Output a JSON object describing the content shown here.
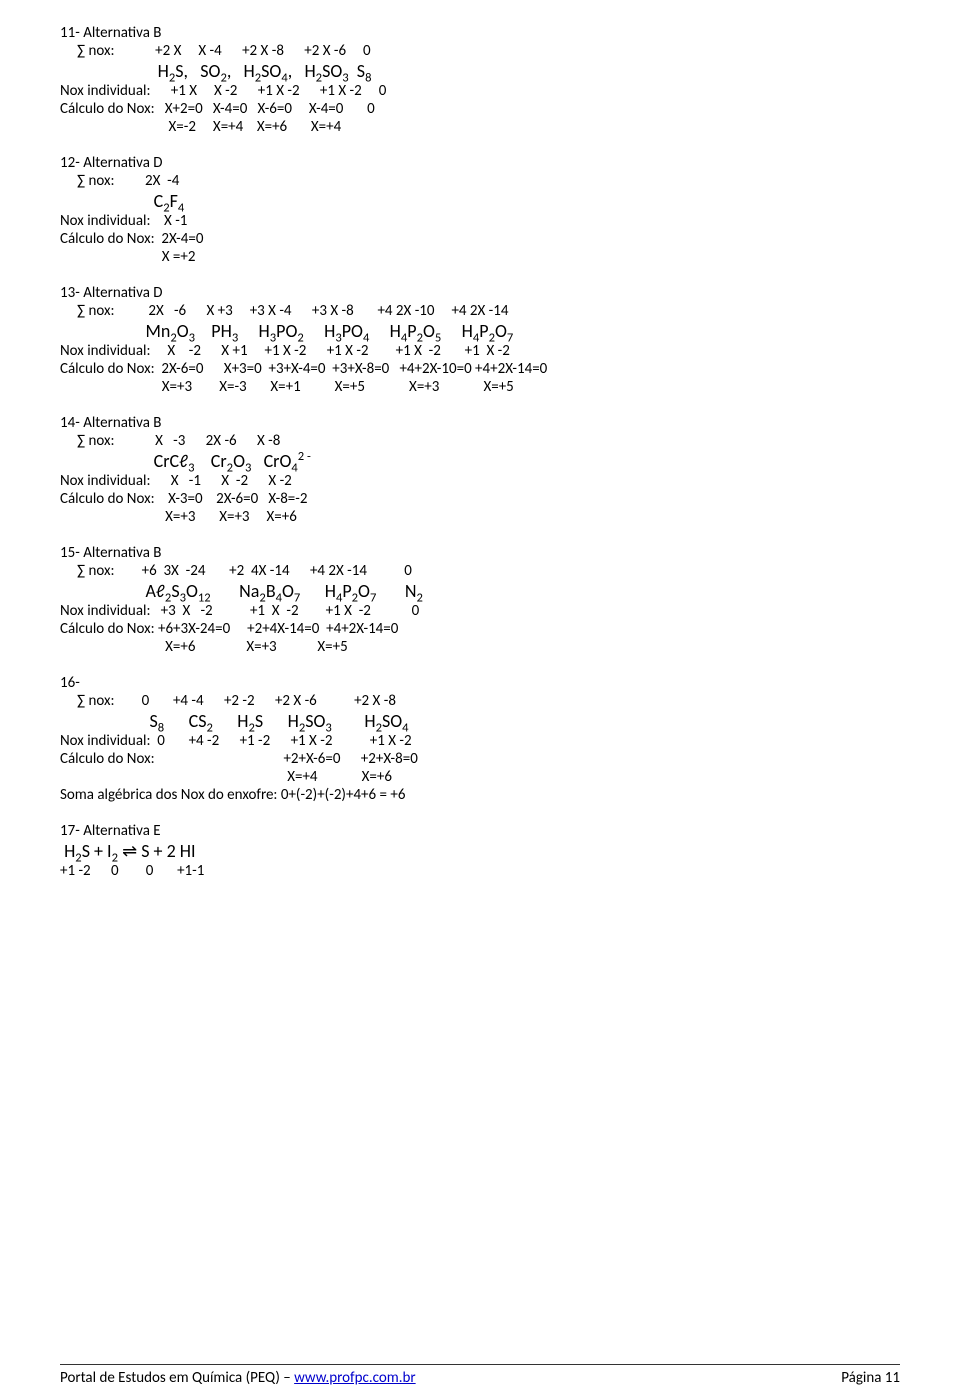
{
  "q11": {
    "title": "11- Alternativa B",
    "sum": "     ∑ nox:            +2 X     X -4      +2 X -8      +2 X -6     0",
    "ind": "Nox individual:      +1 X     X -2      +1 X -2      +1 X -2     0",
    "calc": "Cálculo do Nox:   X+2=0   X-4=0   X-6=0     X-4=0       0",
    "res": "                                X=-2     X=+4    X=+6       X=+4"
  },
  "q12": {
    "title": "12- Alternativa D",
    "sum": "     ∑ nox:         2X  -4",
    "ind": "Nox individual:    X -1",
    "calc": "Cálculo do Nox:  2X-4=0",
    "res": "                              X =+2"
  },
  "q13": {
    "title": "13- Alternativa D",
    "sum": "     ∑ nox:          2X   -6      X +3     +3 X -4      +3 X -8       +4 2X -10     +4 2X -14",
    "ind": "Nox individual:     X    -2      X +1     +1 X -2      +1 X -2        +1 X  -2       +1  X -2",
    "calc": "Cálculo do Nox:  2X-6=0      X+3=0  +3+X-4=0  +3+X-8=0   +4+2X-10=0 +4+2X-14=0",
    "res": "                              X=+3        X=-3       X=+1          X=+5             X=+3             X=+5"
  },
  "q14": {
    "title": "14- Alternativa B",
    "sum": "     ∑ nox:            X   -3      2X -6      X -8",
    "ind": "Nox individual:      X   -1      X  -2      X -2",
    "calc": "Cálculo do Nox:    X-3=0    2X-6=0   X-8=-2",
    "res": "                               X=+3       X=+3     X=+6"
  },
  "q15": {
    "title": "15- Alternativa B",
    "sum": "     ∑ nox:        +6  3X  -24       +2  4X -14      +4 2X -14           0",
    "ind": "Nox individual:   +3  X   -2           +1  X  -2        +1 X  -2            0",
    "calc": "Cálculo do Nox: +6+3X-24=0     +2+4X-14=0  +4+2X-14=0",
    "res": "                               X=+6               X=+3            X=+5"
  },
  "q16": {
    "title": "16-",
    "sum": "     ∑ nox:        0       +4 -4      +2 -2      +2 X -6           +2 X -8",
    "ind": "Nox individual:  0       +4 -2      +1 -2      +1 X -2           +1 X -2",
    "calc": "Cálculo do Nox:                                      +2+X-6=0      +2+X-8=0",
    "res": "                                                                   X=+4             X=+6",
    "soma": "Soma algébrica dos Nox do enxofre: 0+(-2)+(-2)+4+6 = +6"
  },
  "q17": {
    "title": "17- Alternativa E",
    "nums": "+1 -2      0        0       +1-1"
  },
  "footer": {
    "left_pre": "Portal de Estudos em Química (PEQ) – ",
    "link": "www.profpc.com.br",
    "right": "Página 11"
  }
}
